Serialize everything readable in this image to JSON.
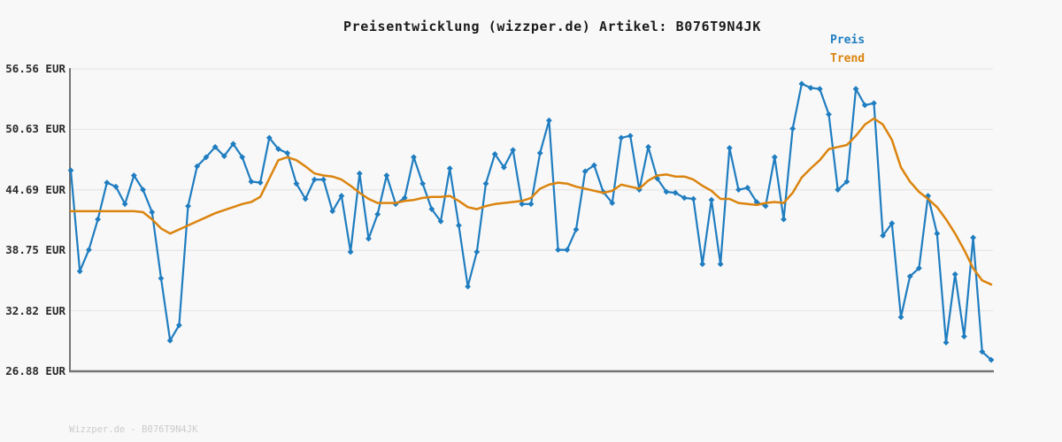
{
  "page": {
    "background": "#f8f8f8"
  },
  "header": {
    "title": "Preisentwicklung (wizzper.de) Artikel: B076T9N4JK"
  },
  "legend": {
    "items": [
      {
        "label": "Preis",
        "color": "#1f7dc0"
      },
      {
        "label": "Trend",
        "color": "#db840e"
      }
    ]
  },
  "axis": {
    "y_tick_labels": [
      "56.56 EUR",
      "50.63 EUR",
      "44.69 EUR",
      "38.75 EUR",
      "32.82 EUR",
      "26.88 EUR"
    ],
    "y_tick_values": [
      56.56,
      50.63,
      44.69,
      38.75,
      32.82,
      26.88
    ],
    "spine_color": "#757575",
    "grid_color": "#e6e6e6",
    "tick_label_color": "#2b2b2b"
  },
  "footer": {
    "watermark": "Wizzper.de - B076T9N4JK"
  },
  "chart_data": {
    "type": "line",
    "title": "Preisentwicklung (wizzper.de) Artikel: B076T9N4JK",
    "xlabel": "",
    "ylabel": "EUR",
    "ylim": [
      26.88,
      56.56
    ],
    "y_ticks": [
      56.56,
      50.63,
      44.69,
      38.75,
      32.82,
      26.88
    ],
    "x_axis_labels": "none (time axis unlabeled)",
    "grid": true,
    "legend_position": "top-right",
    "series": [
      {
        "name": "Preis",
        "color": "#1f7dc0",
        "marker": "diamond",
        "values": [
          46.6,
          36.7,
          38.8,
          41.8,
          45.4,
          45.0,
          43.3,
          46.1,
          44.7,
          42.5,
          36.0,
          29.9,
          31.4,
          43.1,
          47.0,
          47.9,
          48.9,
          48.0,
          49.2,
          47.9,
          45.5,
          45.4,
          49.8,
          48.7,
          48.3,
          45.3,
          43.8,
          45.7,
          45.7,
          42.6,
          44.1,
          38.6,
          46.3,
          39.9,
          42.3,
          46.1,
          43.3,
          43.9,
          47.9,
          45.3,
          42.8,
          41.6,
          46.8,
          41.2,
          35.2,
          38.6,
          45.3,
          48.2,
          46.9,
          48.6,
          43.3,
          43.3,
          48.3,
          51.5,
          38.8,
          38.8,
          40.8,
          46.5,
          47.1,
          44.5,
          43.4,
          49.8,
          50.0,
          44.7,
          48.9,
          45.8,
          44.5,
          44.4,
          43.9,
          43.8,
          37.4,
          43.7,
          37.4,
          48.8,
          44.7,
          44.9,
          43.5,
          43.1,
          47.9,
          41.8,
          50.7,
          55.1,
          54.7,
          54.6,
          52.1,
          44.7,
          45.5,
          54.6,
          53.0,
          53.2,
          40.2,
          41.4,
          32.2,
          36.2,
          37.0,
          44.1,
          40.4,
          29.7,
          36.4,
          30.3,
          40.0,
          28.8,
          28.0
        ]
      },
      {
        "name": "Trend",
        "color": "#db840e",
        "marker": "none",
        "values": [
          42.6,
          42.6,
          42.6,
          42.6,
          42.6,
          42.6,
          42.6,
          42.6,
          42.5,
          41.8,
          40.9,
          40.4,
          40.8,
          41.2,
          41.6,
          42.0,
          42.4,
          42.7,
          43.0,
          43.3,
          43.5,
          44.0,
          45.8,
          47.6,
          47.9,
          47.6,
          47.0,
          46.3,
          46.1,
          46.0,
          45.7,
          45.1,
          44.4,
          43.8,
          43.4,
          43.4,
          43.4,
          43.6,
          43.7,
          43.9,
          44.0,
          44.0,
          44.1,
          43.6,
          43.0,
          42.8,
          43.1,
          43.3,
          43.4,
          43.5,
          43.6,
          43.9,
          44.8,
          45.2,
          45.4,
          45.3,
          45.0,
          44.8,
          44.6,
          44.4,
          44.6,
          45.2,
          45.0,
          44.8,
          45.6,
          46.1,
          46.2,
          46.0,
          46.0,
          45.7,
          45.1,
          44.6,
          43.8,
          43.8,
          43.4,
          43.3,
          43.2,
          43.4,
          43.5,
          43.4,
          44.4,
          45.9,
          46.8,
          47.6,
          48.7,
          48.9,
          49.1,
          50.0,
          51.1,
          51.7,
          51.1,
          49.6,
          46.9,
          45.5,
          44.5,
          43.8,
          43.0,
          41.8,
          40.4,
          38.8,
          37.0,
          35.8,
          35.4
        ]
      }
    ]
  }
}
